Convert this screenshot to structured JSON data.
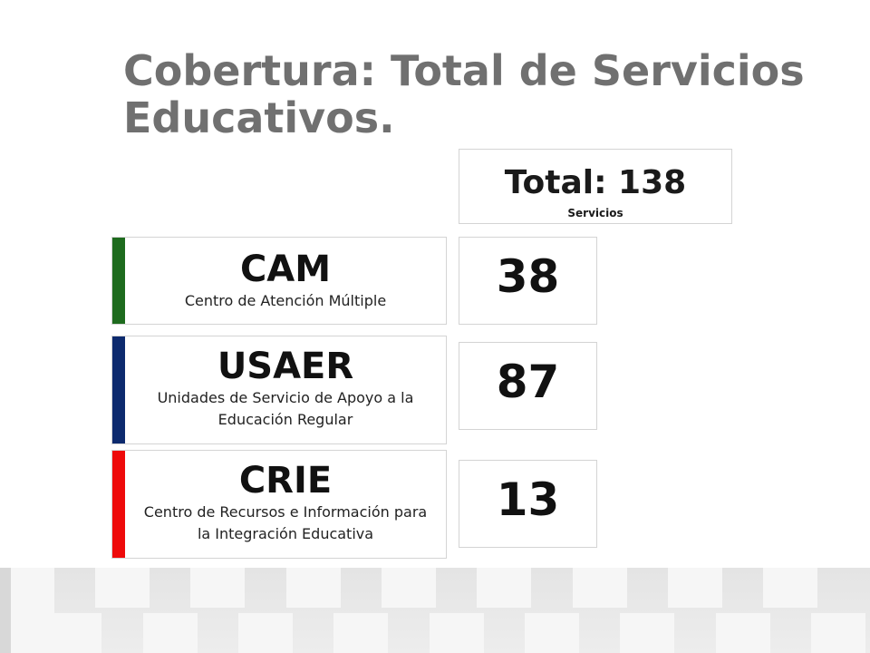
{
  "title": "Cobertura: Total de Servicios Educativos.",
  "total": {
    "label": "Total: 138",
    "sublabel": "Servicios"
  },
  "categories": [
    {
      "abbr": "CAM",
      "description": "Centro de Atención Múltiple",
      "value": "38",
      "color": "#1e6b1e"
    },
    {
      "abbr": "USAER",
      "description": "Unidades de Servicio de Apoyo a la Educación Regular",
      "value": "87",
      "color": "#0d2a6e"
    },
    {
      "abbr": "CRIE",
      "description": "Centro de Recursos e Información para la Integración Educativa",
      "value": "13",
      "color": "#ee0a0a"
    }
  ]
}
